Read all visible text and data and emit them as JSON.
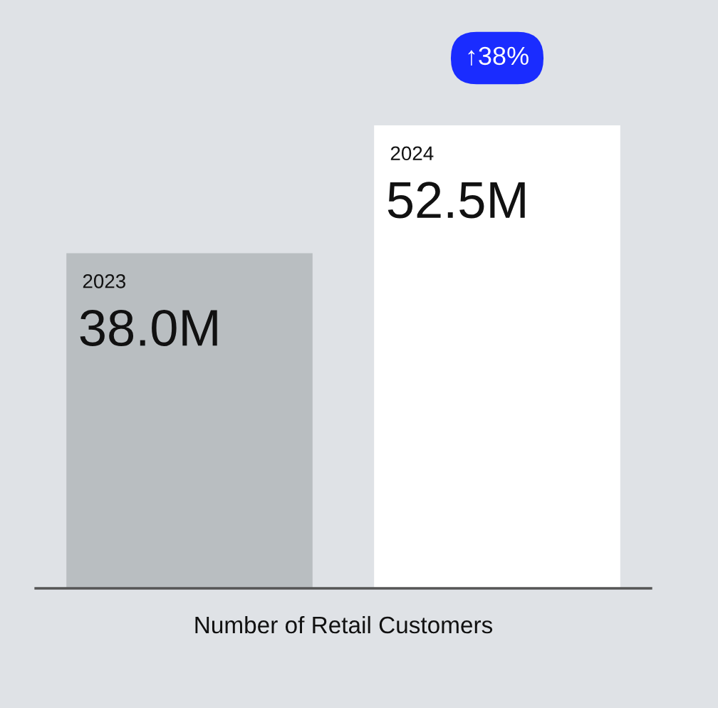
{
  "chart_data": {
    "type": "bar",
    "categories": [
      "2023",
      "2024"
    ],
    "values": [
      38.0,
      52.5
    ],
    "colors": [
      "#b9bec1",
      "#ffffff"
    ],
    "value_labels": [
      "38.0M",
      "52.5M"
    ],
    "xlabel": "Number of Retail Customers",
    "annotations": [
      "↑38%"
    ]
  }
}
